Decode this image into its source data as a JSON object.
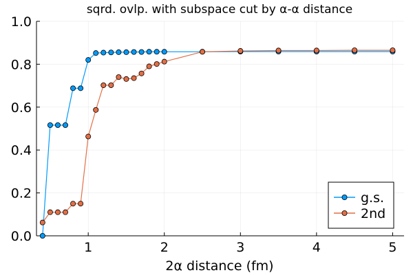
{
  "chart_data": {
    "type": "line",
    "title": "sqrd. ovlp. with subspace cut by α-α distance",
    "xlabel": "2α distance (fm)",
    "ylabel": "",
    "xlim": [
      0.32,
      5.15
    ],
    "ylim": [
      0.0,
      1.0
    ],
    "x_ticks": [
      "1",
      "2",
      "3",
      "4",
      "5"
    ],
    "y_ticks": [
      "0.0",
      "0.2",
      "0.4",
      "0.6",
      "0.8",
      "1.0"
    ],
    "grid": true,
    "legend_position": "bottom-right",
    "series": [
      {
        "name": "g.s.",
        "color": "#009AFA",
        "x": [
          0.4,
          0.5,
          0.6,
          0.7,
          0.8,
          0.9,
          1.0,
          1.1,
          1.2,
          1.3,
          1.4,
          1.5,
          1.6,
          1.7,
          1.8,
          1.9,
          2.0,
          2.5,
          3.0,
          3.5,
          4.0,
          4.5,
          5.0
        ],
        "values": [
          0.0,
          0.516,
          0.516,
          0.516,
          0.688,
          0.688,
          0.82,
          0.852,
          0.854,
          0.855,
          0.856,
          0.856,
          0.857,
          0.857,
          0.858,
          0.858,
          0.858,
          0.858,
          0.859,
          0.859,
          0.859,
          0.859,
          0.859
        ]
      },
      {
        "name": "2nd",
        "color": "#E26F46",
        "x": [
          0.4,
          0.5,
          0.6,
          0.7,
          0.8,
          0.9,
          1.0,
          1.1,
          1.2,
          1.3,
          1.4,
          1.5,
          1.6,
          1.7,
          1.8,
          1.9,
          2.0,
          2.5,
          3.0,
          3.5,
          4.0,
          4.5,
          5.0
        ],
        "values": [
          0.062,
          0.11,
          0.11,
          0.11,
          0.15,
          0.15,
          0.463,
          0.587,
          0.702,
          0.702,
          0.74,
          0.731,
          0.735,
          0.757,
          0.79,
          0.801,
          0.812,
          0.858,
          0.862,
          0.864,
          0.864,
          0.865,
          0.865
        ]
      }
    ]
  }
}
